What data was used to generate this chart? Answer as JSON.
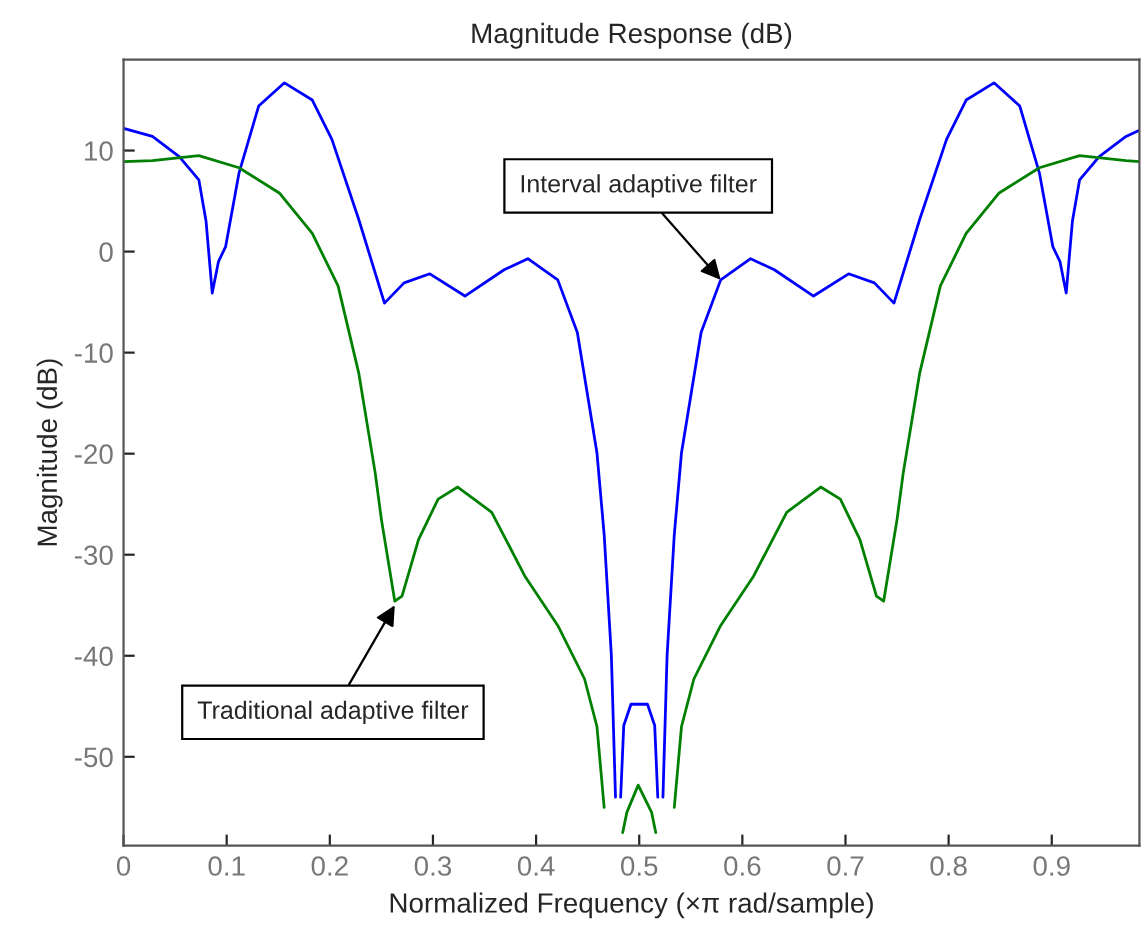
{
  "chart_data": {
    "type": "line",
    "title": "Magnitude Response (dB)",
    "xlabel": "Normalized Frequency (×π rad/sample)",
    "ylabel": "Magnitude (dB)",
    "xlim": [
      0,
      0.985
    ],
    "ylim": [
      -58.8,
      19
    ],
    "xticks": [
      0,
      0.1,
      0.2,
      0.3,
      0.4,
      0.5,
      0.6,
      0.7,
      0.8,
      0.9
    ],
    "yticks": [
      -50,
      -40,
      -30,
      -20,
      -10,
      0,
      10
    ],
    "grid": false,
    "series": [
      {
        "color": "#0000ff",
        "x": [
          0,
          0.028,
          0.054,
          0.073,
          0.08,
          0.086,
          0.092,
          0.099,
          0.112,
          0.131,
          0.156,
          0.183,
          0.202,
          0.228,
          0.253,
          0.272,
          0.297,
          0.331,
          0.369,
          0.392,
          0.421,
          0.44,
          0.459,
          0.466,
          0.473,
          0.477,
          0.479,
          0.482,
          0.485,
          0.492,
          0.508,
          0.515,
          0.518,
          0.521,
          0.523,
          0.527,
          0.534,
          0.541,
          0.56,
          0.579,
          0.608,
          0.631,
          0.669,
          0.703,
          0.728,
          0.747,
          0.772,
          0.798,
          0.817,
          0.844,
          0.869,
          0.888,
          0.901,
          0.908,
          0.914,
          0.92,
          0.927,
          0.946,
          0.972,
          0.985
        ],
        "values": [
          12.2,
          11.4,
          9.4,
          7.1,
          3,
          -4.1,
          -1,
          0.5,
          7.8,
          14.4,
          16.7,
          15.0,
          11.1,
          3.2,
          -5.1,
          -3.1,
          -2.2,
          -4.4,
          -1.8,
          -0.7,
          -2.8,
          -8.0,
          -19.9,
          -28,
          -40,
          -54,
          null,
          -54,
          -46.9,
          -44.8,
          -44.8,
          -46.9,
          -54,
          null,
          -54,
          -40,
          -28,
          -19.9,
          -8.0,
          -2.8,
          -0.7,
          -1.8,
          -4.4,
          -2.2,
          -3.1,
          -5.1,
          3.2,
          11.1,
          15.0,
          16.7,
          14.4,
          7.8,
          0.5,
          -1,
          -4.1,
          3,
          7.1,
          9.4,
          11.4,
          12.0
        ]
      },
      {
        "color": "#008000",
        "x": [
          0,
          0.028,
          0.073,
          0.112,
          0.151,
          0.183,
          0.208,
          0.228,
          0.244,
          0.25,
          0.263,
          0.27,
          0.286,
          0.305,
          0.324,
          0.357,
          0.389,
          0.421,
          0.447,
          0.459,
          0.466,
          0.472,
          0.479,
          0.484,
          0.488,
          0.499,
          0.512,
          0.516,
          0.521,
          0.528,
          0.534,
          0.541,
          0.553,
          0.579,
          0.611,
          0.643,
          0.676,
          0.695,
          0.714,
          0.73,
          0.737,
          0.75,
          0.756,
          0.772,
          0.792,
          0.817,
          0.849,
          0.888,
          0.927,
          0.972,
          0.985
        ],
        "values": [
          8.9,
          9.0,
          9.5,
          8.3,
          5.8,
          1.8,
          -3.4,
          -12.0,
          -21.9,
          -26.5,
          -34.6,
          -34.1,
          -28.5,
          -24.5,
          -23.3,
          -25.8,
          -32.1,
          -37.0,
          -42.3,
          -47,
          -55,
          null,
          null,
          -57.5,
          -55.5,
          -52.8,
          -55.5,
          -57.5,
          null,
          null,
          -55,
          -47,
          -42.3,
          -37.0,
          -32.1,
          -25.8,
          -23.3,
          -24.5,
          -28.5,
          -34.1,
          -34.6,
          -26.5,
          -21.9,
          -12.0,
          -3.4,
          1.8,
          5.8,
          8.3,
          9.5,
          9.0,
          8.9
        ]
      }
    ],
    "annotations": [
      {
        "text": "Interval adaptive filter",
        "x": 0.579,
        "y": -2.8
      },
      {
        "text": "Traditional adaptive filter",
        "x": 0.263,
        "y": -35
      }
    ]
  }
}
